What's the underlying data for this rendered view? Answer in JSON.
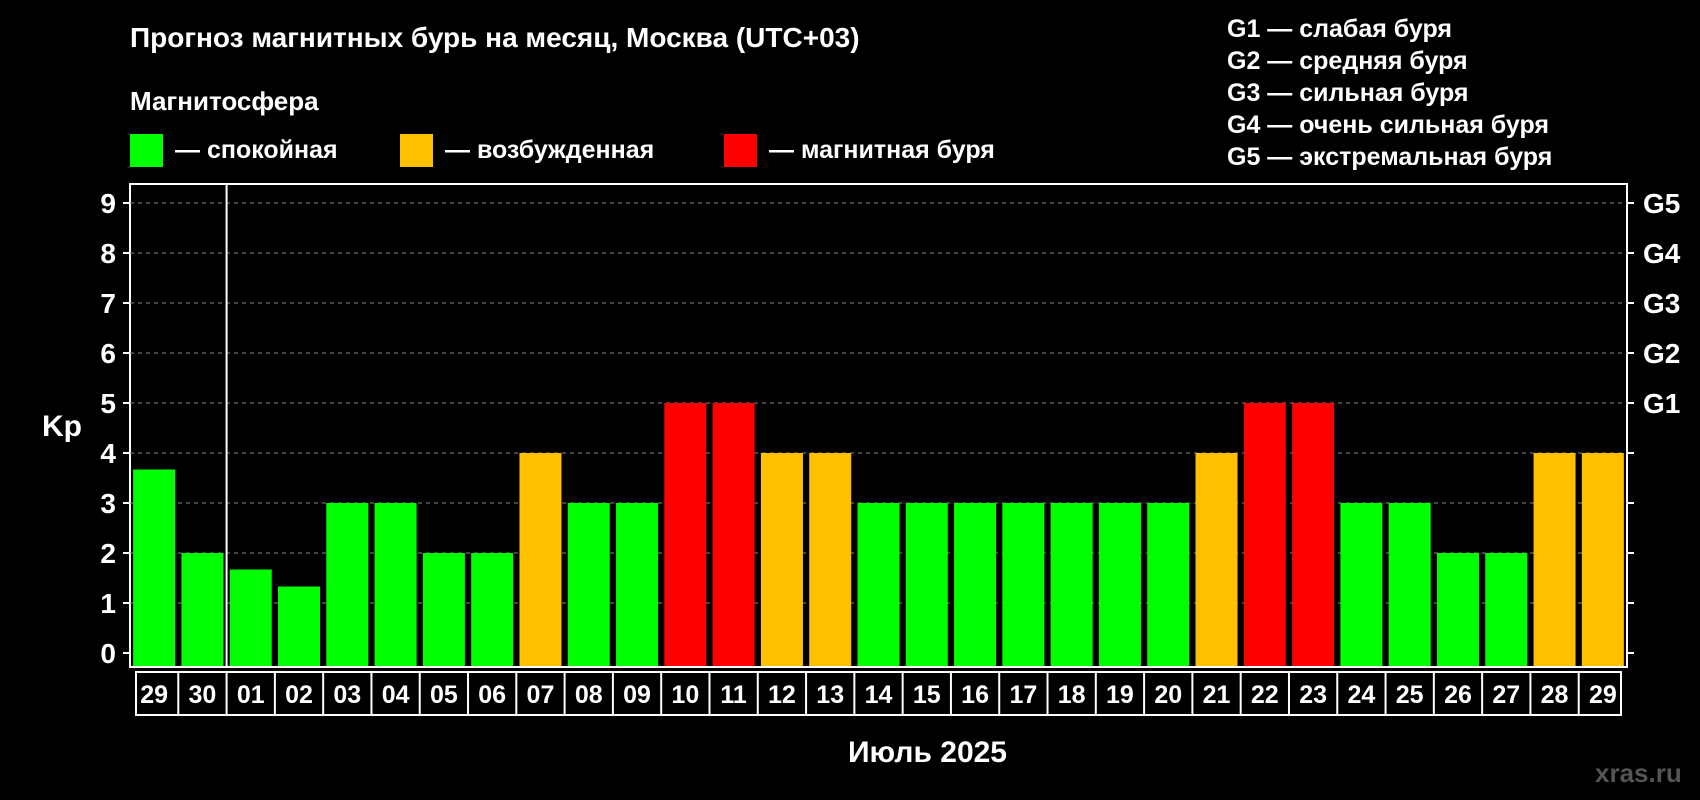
{
  "chart_data": {
    "type": "bar",
    "title": "Прогноз магнитных бурь на месяц, Москва (UTC+03)",
    "subtitle": "Магнитосфера",
    "xlabel": "Июль 2025",
    "ylabel": "Kp",
    "ylim": [
      0,
      9
    ],
    "yticks": [
      "0",
      "1",
      "2",
      "3",
      "4",
      "5",
      "6",
      "7",
      "8",
      "9"
    ],
    "grid": true,
    "categories": [
      "29",
      "30",
      "01",
      "02",
      "03",
      "04",
      "05",
      "06",
      "07",
      "08",
      "09",
      "10",
      "11",
      "12",
      "13",
      "14",
      "15",
      "16",
      "17",
      "18",
      "19",
      "20",
      "21",
      "22",
      "23",
      "24",
      "25",
      "26",
      "27",
      "28",
      "29"
    ],
    "values": [
      3.67,
      2,
      1.67,
      1.33,
      3,
      3,
      2,
      2,
      4,
      3,
      3,
      5,
      5,
      4,
      4,
      3,
      3,
      3,
      3,
      3,
      3,
      3,
      4,
      5,
      5,
      3,
      3,
      2,
      2,
      4,
      4
    ],
    "status": [
      "calm",
      "calm",
      "calm",
      "calm",
      "calm",
      "calm",
      "calm",
      "calm",
      "excited",
      "calm",
      "calm",
      "storm",
      "storm",
      "excited",
      "excited",
      "calm",
      "calm",
      "calm",
      "calm",
      "calm",
      "calm",
      "calm",
      "excited",
      "storm",
      "storm",
      "calm",
      "calm",
      "calm",
      "calm",
      "excited",
      "excited"
    ],
    "colors": {
      "calm": "#00ff00",
      "excited": "#ffc000",
      "storm": "#ff0000"
    },
    "legend": [
      {
        "key": "calm",
        "label": "— спокойная"
      },
      {
        "key": "excited",
        "label": "— возбужденная"
      },
      {
        "key": "storm",
        "label": "— магнитная буря"
      }
    ],
    "right_axis": [
      {
        "kp": 5,
        "label": "G1"
      },
      {
        "kp": 6,
        "label": "G2"
      },
      {
        "kp": 7,
        "label": "G3"
      },
      {
        "kp": 8,
        "label": "G4"
      },
      {
        "kp": 9,
        "label": "G5"
      }
    ],
    "storm_levels": [
      "G1 — слабая буря",
      "G2 — средняя буря",
      "G3 — сильная буря",
      "G4 — очень сильная буря",
      "G5 — экстремальная буря"
    ]
  },
  "watermark": "xras.ru"
}
